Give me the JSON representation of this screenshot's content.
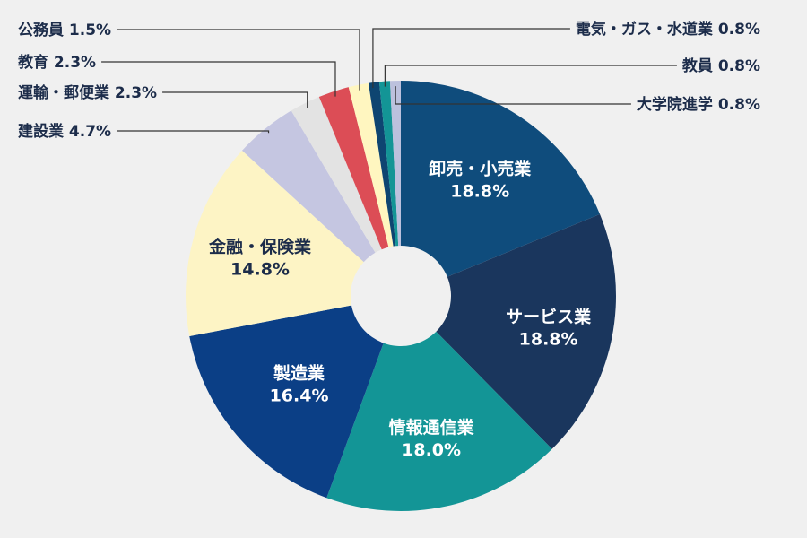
{
  "chart_data": {
    "type": "pie",
    "title": "",
    "series": [
      {
        "label": "卸売・小売業",
        "value": 18.8,
        "value_label": "18.8%",
        "color": "#0f4c7c",
        "placement": "inside"
      },
      {
        "label": "サービス業",
        "value": 18.8,
        "value_label": "18.8%",
        "color": "#1a365d",
        "placement": "inside"
      },
      {
        "label": "情報通信業",
        "value": 18.0,
        "value_label": "18.0%",
        "color": "#139596",
        "placement": "inside"
      },
      {
        "label": "製造業",
        "value": 16.4,
        "value_label": "16.4%",
        "color": "#0b3f86",
        "placement": "inside"
      },
      {
        "label": "金融・保険業",
        "value": 14.8,
        "value_label": "14.8%",
        "color": "#fdf4c5",
        "placement": "inside"
      },
      {
        "label": "建設業",
        "value": 4.7,
        "value_label": "4.7%",
        "color": "#c5c6e1",
        "placement": "outside-left"
      },
      {
        "label": "運輸・郵便業",
        "value": 2.3,
        "value_label": "2.3%",
        "color": "#e3e3e3",
        "placement": "outside-left"
      },
      {
        "label": "教育",
        "value": 2.3,
        "value_label": "2.3%",
        "color": "#dc4d56",
        "placement": "outside-left"
      },
      {
        "label": "公務員",
        "value": 1.5,
        "value_label": "1.5%",
        "color": "#fff6c0",
        "placement": "outside-left"
      },
      {
        "label": "電気・ガス・水道業",
        "value": 0.8,
        "value_label": "0.8%",
        "color": "#0e4571",
        "placement": "outside-right"
      },
      {
        "label": "教員",
        "value": 0.8,
        "value_label": "0.8%",
        "color": "#139596",
        "placement": "outside-right"
      },
      {
        "label": "大学院進学",
        "value": 0.8,
        "value_label": "0.8%",
        "color": "#bcc1dd",
        "placement": "outside-right"
      }
    ],
    "donut": true,
    "legend": "none",
    "background": "#f0f0f0"
  }
}
